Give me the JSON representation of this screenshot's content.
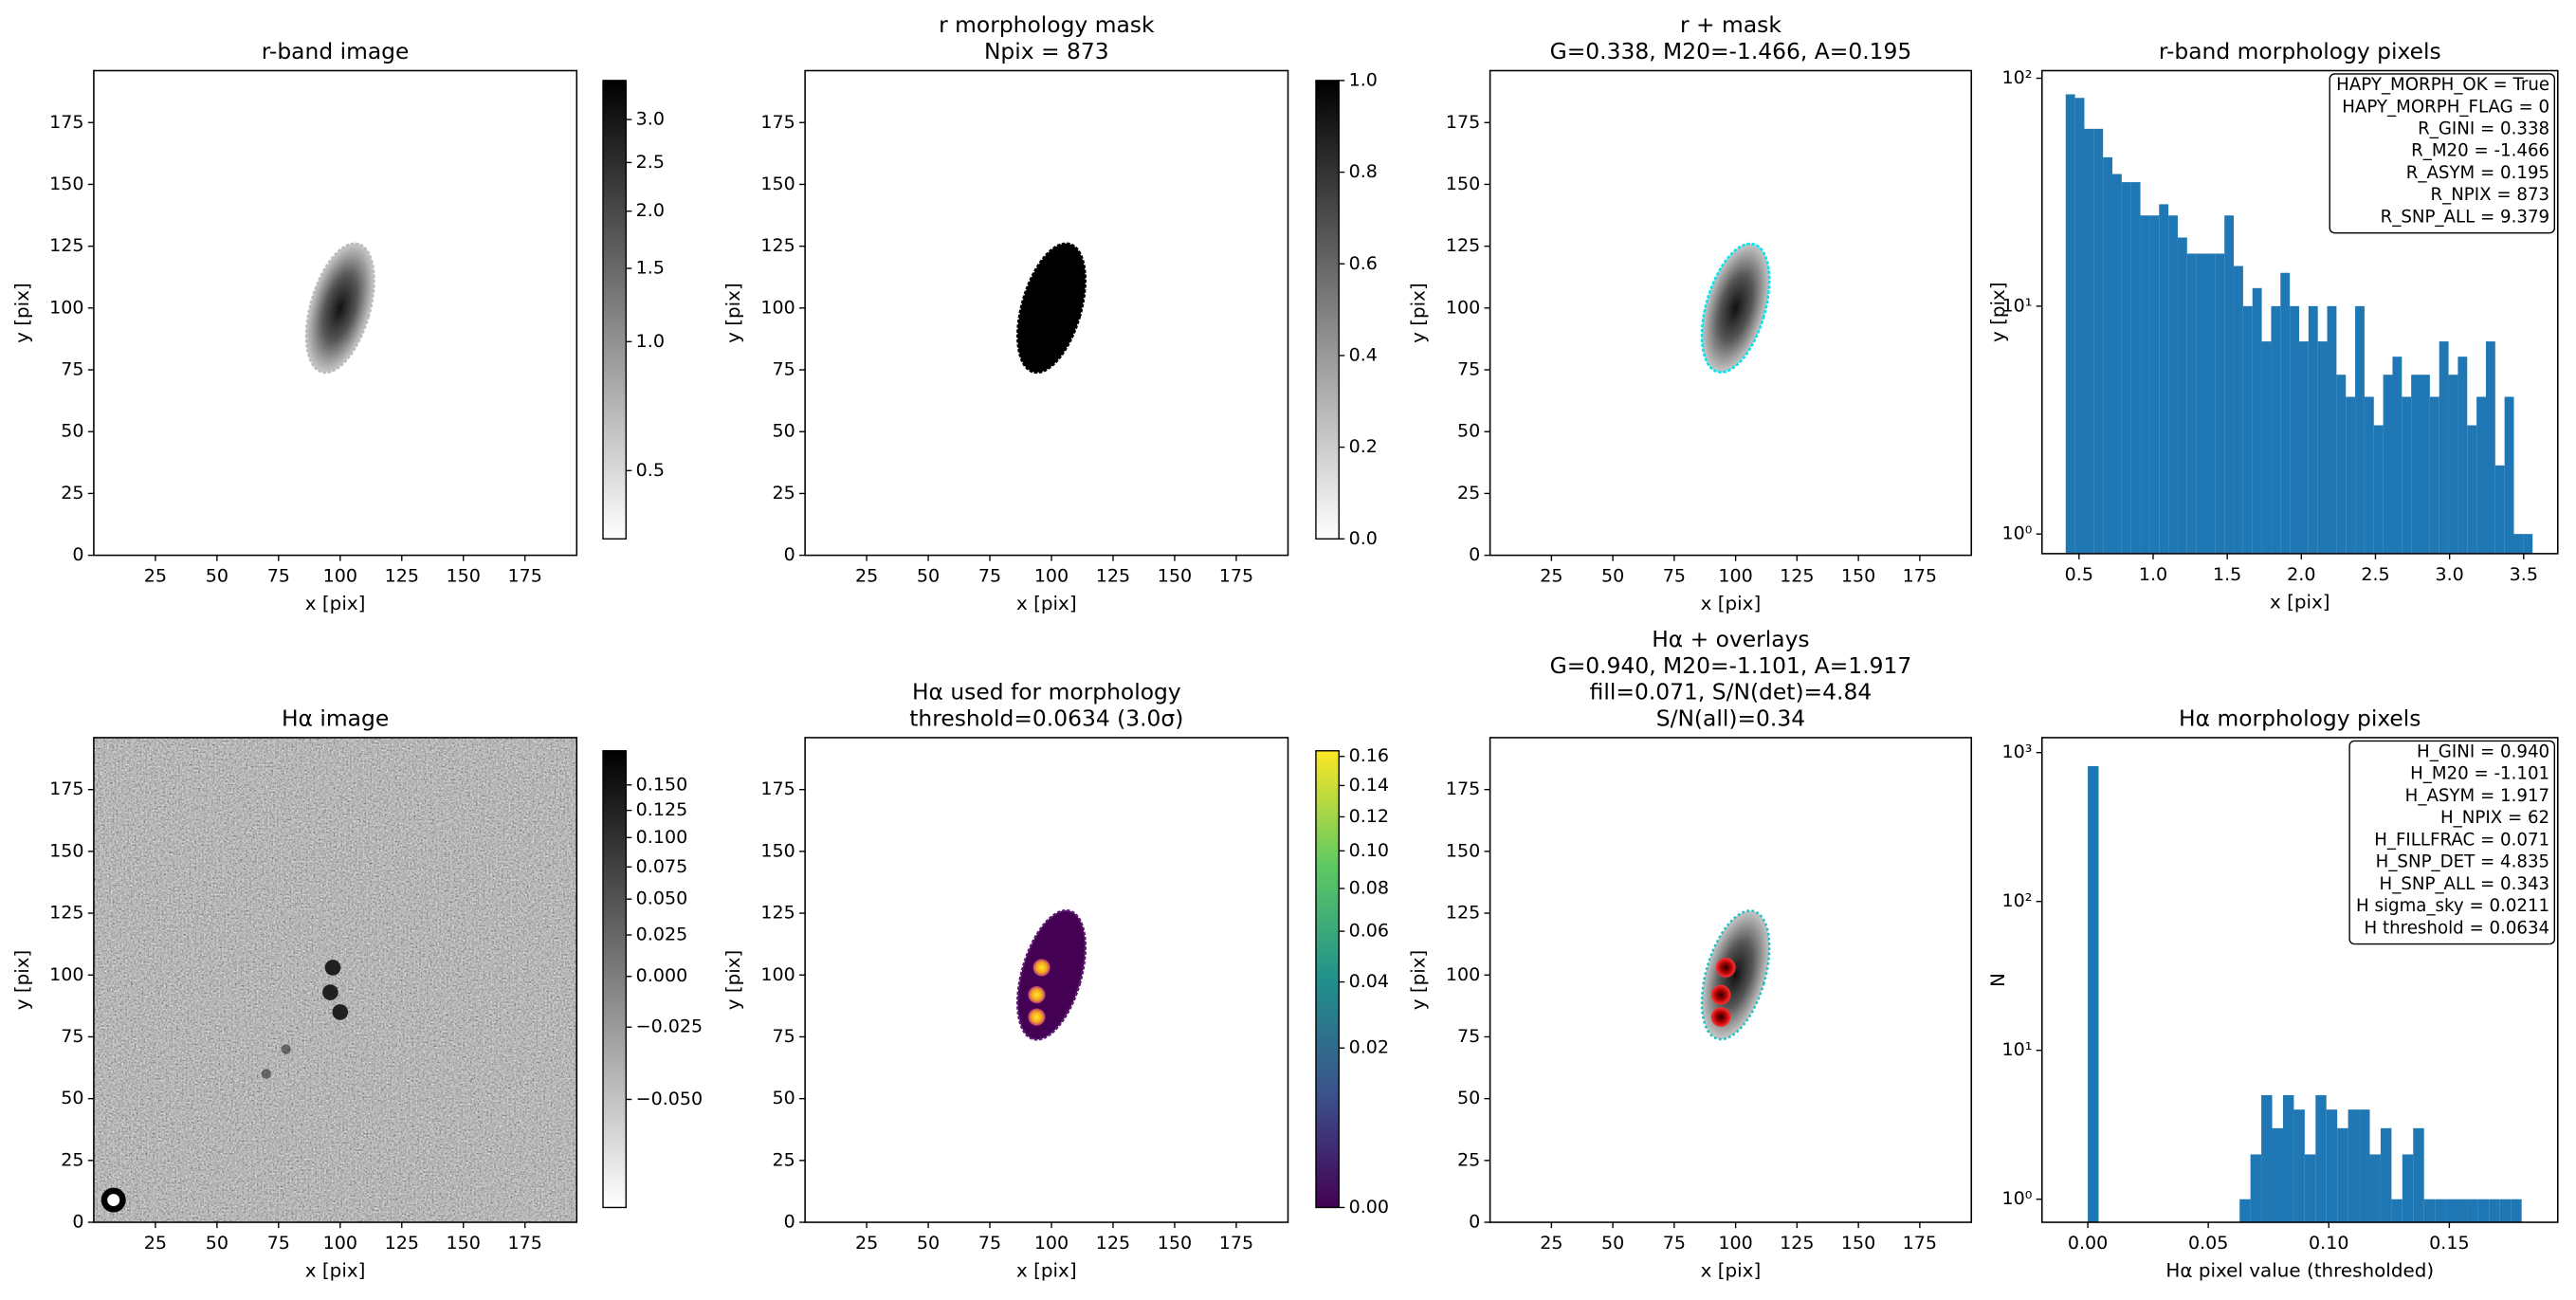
{
  "chart_data": [
    {
      "type": "image",
      "title": [
        "r-band image"
      ],
      "xlabel": "x [pix]",
      "ylabel": "y [pix]",
      "xlim": [
        0,
        196
      ],
      "ylim": [
        0,
        196
      ],
      "xticks": [
        25,
        50,
        75,
        100,
        125,
        150,
        175
      ],
      "yticks": [
        0,
        25,
        50,
        75,
        100,
        125,
        150,
        175
      ],
      "colorbar": {
        "cmap": "gray_r",
        "scale": "sqrt",
        "clim": [
          0.432,
          3.5
        ],
        "ticks": [
          0.5,
          {
            "value": 1,
            "label": "1.0"
          },
          1.5,
          {
            "value": 2,
            "label": "2.0"
          },
          2.5,
          {
            "value": 3,
            "label": "3.0"
          }
        ]
      }
    },
    {
      "type": "image",
      "title": [
        "r morphology mask",
        "Npix = 873"
      ],
      "xlabel": "x [pix]",
      "ylabel": "y [pix]",
      "xlim": [
        0,
        196
      ],
      "ylim": [
        0,
        196
      ],
      "xticks": [
        25,
        50,
        75,
        100,
        125,
        150,
        175
      ],
      "yticks": [
        0,
        25,
        50,
        75,
        100,
        125,
        150,
        175
      ],
      "colorbar": {
        "cmap": "gray_r",
        "scale": "linear",
        "clim": [
          0,
          1
        ],
        "ticks": [
          {
            "value": 0,
            "label": "0.0"
          },
          0.2,
          0.4,
          0.6,
          0.8,
          {
            "value": 1,
            "label": "1.0"
          }
        ]
      }
    },
    {
      "type": "image",
      "title": [
        "r + mask",
        "G=0.338, M20=-1.466, A=0.195"
      ],
      "xlabel": "x [pix]",
      "ylabel": "y [pix]",
      "xlim": [
        0,
        196
      ],
      "ylim": [
        0,
        196
      ],
      "xticks": [
        25,
        50,
        75,
        100,
        125,
        150,
        175
      ],
      "yticks": [
        0,
        25,
        50,
        75,
        100,
        125,
        150,
        175
      ]
    },
    {
      "type": "histogram",
      "title": [
        "r-band morphology pixels"
      ],
      "xlabel": "x [pix]",
      "ylabel": "y [pix]",
      "color": "#1f77b4",
      "xlim": [
        0.25,
        3.73
      ],
      "xticks": [
        0.5,
        {
          "value": 1,
          "label": "1.0"
        },
        1.5,
        {
          "value": 2,
          "label": "2.0"
        },
        2.5,
        {
          "value": 3,
          "label": "3.0"
        },
        3.5
      ],
      "yscale": "log",
      "ylim": [
        0.82,
        108
      ],
      "yticks": [
        {
          "value": 1,
          "label": "10⁰"
        },
        {
          "value": 10,
          "label": "10¹"
        },
        {
          "value": 100,
          "label": "10²"
        }
      ],
      "bins": [
        0.41,
        0.473,
        0.536,
        0.599,
        0.662,
        0.725,
        0.788,
        0.851,
        0.914,
        0.977,
        1.04,
        1.103,
        1.166,
        1.229,
        1.292,
        1.355,
        1.418,
        1.481,
        1.544,
        1.607,
        1.67,
        1.733,
        1.796,
        1.859,
        1.922,
        1.985,
        2.048,
        2.111,
        2.174,
        2.237,
        2.3,
        2.363,
        2.426,
        2.489,
        2.552,
        2.615,
        2.678,
        2.741,
        2.804,
        2.867,
        2.93,
        2.993,
        3.056,
        3.119,
        3.182,
        3.245,
        3.308,
        3.371,
        3.434,
        3.497,
        3.56
      ],
      "values": [
        85,
        82,
        60,
        60,
        45,
        38,
        35,
        35,
        25,
        25,
        28,
        25,
        20,
        17,
        17,
        17,
        17,
        25,
        15,
        10,
        12,
        7,
        10,
        14,
        10,
        7,
        10,
        7,
        10,
        5,
        4,
        10,
        4,
        3,
        5,
        6,
        4,
        5,
        5,
        4,
        7,
        5,
        6,
        3,
        4,
        7,
        2,
        4,
        1,
        1
      ],
      "annotation": [
        "HAPY_MORPH_OK = True",
        "HAPY_MORPH_FLAG = 0",
        "R_GINI = 0.338",
        "R_M20 = -1.466",
        "R_ASYM = 0.195",
        "R_NPIX = 873",
        "R_SNP_ALL = 9.379"
      ]
    },
    {
      "type": "image",
      "title": [
        "Hα image"
      ],
      "xlabel": "x [pix]",
      "ylabel": "y [pix]",
      "xlim": [
        0,
        196
      ],
      "ylim": [
        0,
        196
      ],
      "xticks": [
        25,
        50,
        75,
        100,
        125,
        150,
        175
      ],
      "yticks": [
        0,
        25,
        50,
        75,
        100,
        125,
        150,
        175
      ],
      "colorbar": {
        "cmap": "gray_r",
        "scale": "sqrt",
        "clim": [
          -0.064,
          0.186
        ],
        "ticks": [
          {
            "value": -0.05,
            "label": "−0.050"
          },
          {
            "value": -0.025,
            "label": "−0.025"
          },
          {
            "value": 0,
            "label": "0.000"
          },
          0.025,
          {
            "value": 0.05,
            "label": "0.050"
          },
          0.075,
          {
            "value": 0.1,
            "label": "0.100"
          },
          0.125,
          {
            "value": 0.15,
            "label": "0.150"
          }
        ]
      }
    },
    {
      "type": "image",
      "title": [
        "Hα used for morphology",
        "threshold=0.0634 (3.0σ)"
      ],
      "xlabel": "x [pix]",
      "ylabel": "y [pix]",
      "xlim": [
        0,
        196
      ],
      "ylim": [
        0,
        196
      ],
      "xticks": [
        25,
        50,
        75,
        100,
        125,
        150,
        175
      ],
      "yticks": [
        0,
        25,
        50,
        75,
        100,
        125,
        150,
        175
      ],
      "colorbar": {
        "cmap": "viridis",
        "scale": "sqrt",
        "clim": [
          0,
          0.164
        ],
        "ticks": [
          {
            "value": 0,
            "label": "0.00"
          },
          0.02,
          0.04,
          0.06,
          0.08,
          {
            "value": 0.1,
            "label": "0.10"
          },
          0.12,
          0.14,
          0.16
        ]
      }
    },
    {
      "type": "image",
      "title": [
        "Hα + overlays",
        "G=0.940, M20=-1.101, A=1.917",
        "fill=0.071, S/N(det)=4.84",
        "S/N(all)=0.34"
      ],
      "xlabel": "x [pix]",
      "ylabel": "y [pix]",
      "xlim": [
        0,
        196
      ],
      "ylim": [
        0,
        196
      ],
      "xticks": [
        25,
        50,
        75,
        100,
        125,
        150,
        175
      ],
      "yticks": [
        0,
        25,
        50,
        75,
        100,
        125,
        150,
        175
      ]
    },
    {
      "type": "histogram",
      "title": [
        "Hα morphology pixels"
      ],
      "xlabel": "Hα pixel value (thresholded)",
      "ylabel": "N",
      "color": "#1f77b4",
      "xlim": [
        -0.019,
        0.195
      ],
      "xticks": [
        {
          "value": 0,
          "label": "0.00"
        },
        0.05,
        {
          "value": 0.1,
          "label": "0.10"
        },
        0.15
      ],
      "yscale": "log",
      "ylim": [
        0.7,
        1260
      ],
      "yticks": [
        {
          "value": 1,
          "label": "10⁰"
        },
        {
          "value": 10,
          "label": "10¹"
        },
        {
          "value": 100,
          "label": "10²"
        },
        {
          "value": 1000,
          "label": "10³"
        }
      ],
      "bins": [
        0,
        0.0045,
        0.009,
        0.0135,
        0.018,
        0.0225,
        0.027,
        0.0315,
        0.036,
        0.0405,
        0.045,
        0.0495,
        0.054,
        0.0585,
        0.063,
        0.0675,
        0.072,
        0.0765,
        0.081,
        0.0855,
        0.09,
        0.0945,
        0.099,
        0.1035,
        0.108,
        0.1125,
        0.117,
        0.1215,
        0.126,
        0.1305,
        0.135,
        0.1395,
        0.144,
        0.1485,
        0.153,
        0.1575,
        0.162,
        0.1665,
        0.171,
        0.1755,
        0.18
      ],
      "values": [
        811,
        0,
        0,
        0,
        0,
        0,
        0,
        0,
        0,
        0,
        0,
        0,
        0,
        0,
        1,
        2,
        5,
        3,
        5,
        4,
        2,
        5,
        4,
        3,
        4,
        4,
        2,
        3,
        1,
        2,
        3,
        1,
        1,
        1,
        1,
        1,
        1,
        1,
        1,
        1
      ],
      "annotation": [
        "H_GINI = 0.940",
        "H_M20 = -1.101",
        "H_ASYM = 1.917",
        "H_NPIX = 62",
        "H_FILLFRAC = 0.071",
        "H_SNP_DET = 4.835",
        "H_SNP_ALL = 0.343",
        "H sigma_sky = 0.0211",
        "H threshold = 0.0634"
      ]
    }
  ]
}
